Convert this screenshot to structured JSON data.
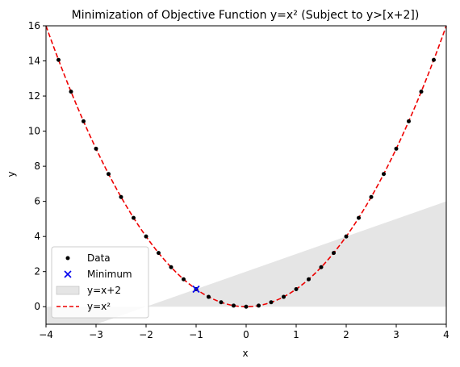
{
  "chart_data": {
    "type": "scatter",
    "title": "Minimization of Objective Function y=x² (Subject to y>[x+2])",
    "xlabel": "x",
    "ylabel": "y",
    "xlim": [
      -4,
      4
    ],
    "ylim": [
      -1,
      16
    ],
    "xticks": [
      -4,
      -3,
      -2,
      -1,
      0,
      1,
      2,
      3,
      4
    ],
    "yticks": [
      0,
      2,
      4,
      6,
      8,
      10,
      12,
      14,
      16
    ],
    "grid": false,
    "legend_position": "lower-left",
    "series": [
      {
        "name": "Data",
        "kind": "scatter",
        "color": "#000000",
        "x": [
          -3.75,
          -3.5,
          -3.25,
          -3.0,
          -2.75,
          -2.5,
          -2.25,
          -2.0,
          -1.75,
          -1.5,
          -1.25,
          -1.0,
          -0.75,
          -0.5,
          -0.25,
          0.0,
          0.25,
          0.5,
          0.75,
          1.0,
          1.25,
          1.5,
          1.75,
          2.0,
          2.25,
          2.5,
          2.75,
          3.0,
          3.25,
          3.5,
          3.75
        ],
        "y": [
          14.06,
          12.25,
          10.56,
          9.0,
          7.56,
          6.25,
          5.06,
          4.0,
          3.06,
          2.25,
          1.56,
          1.0,
          0.56,
          0.25,
          0.06,
          0.0,
          0.06,
          0.25,
          0.56,
          1.0,
          1.56,
          2.25,
          3.06,
          4.0,
          5.06,
          6.25,
          7.56,
          9.0,
          10.56,
          12.25,
          14.06
        ]
      },
      {
        "name": "Minimum",
        "kind": "marker-x",
        "color": "#0000ee",
        "x": [
          -1.0
        ],
        "y": [
          1.0
        ]
      },
      {
        "name": "y=x+2",
        "kind": "fill-between",
        "color": "#d3d3d3",
        "x": [
          -4,
          4
        ],
        "y_upper": [
          -2,
          6
        ],
        "y_lower": [
          0,
          0
        ]
      },
      {
        "name": "y=x²",
        "kind": "dashed-line",
        "color": "#ee0000",
        "function": "x^2"
      }
    ]
  }
}
